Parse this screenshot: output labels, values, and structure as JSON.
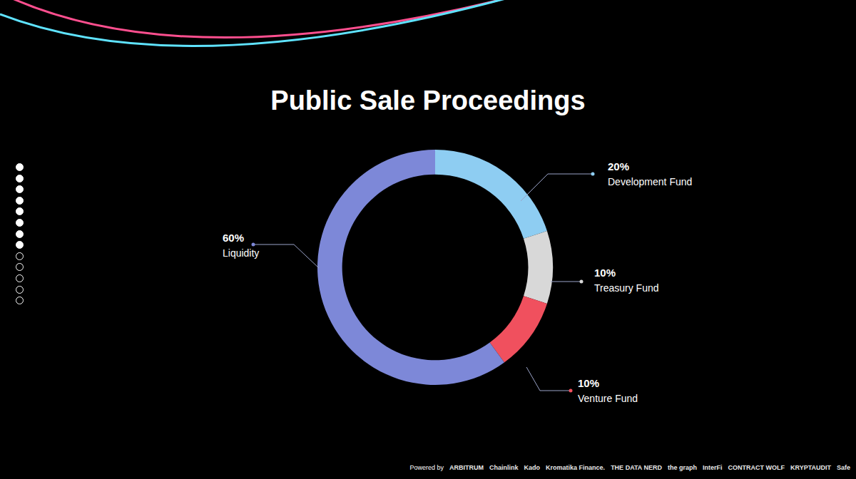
{
  "chart_data": {
    "type": "pie",
    "title": "Public Sale Proceedings",
    "categories": [
      "Development Fund",
      "Treasury Fund",
      "Venture Fund",
      "Liquidity"
    ],
    "values": [
      20,
      10,
      10,
      60
    ],
    "value_labels": [
      "20%",
      "10%",
      "10%",
      "60%"
    ],
    "colors": [
      "#8ecdf2",
      "#d8d8d8",
      "#f0505e",
      "#7d88d8"
    ],
    "data_labels": true
  },
  "footer": {
    "label": "Powered by",
    "logos": [
      "ARBITRUM",
      "Chainlink",
      "Kado",
      "Kromatika Finance.",
      "THE DATA NERD",
      "the graph",
      "InterFi",
      "CONTRACT WOLF",
      "KRYPTAUDIT",
      "Safe"
    ]
  }
}
